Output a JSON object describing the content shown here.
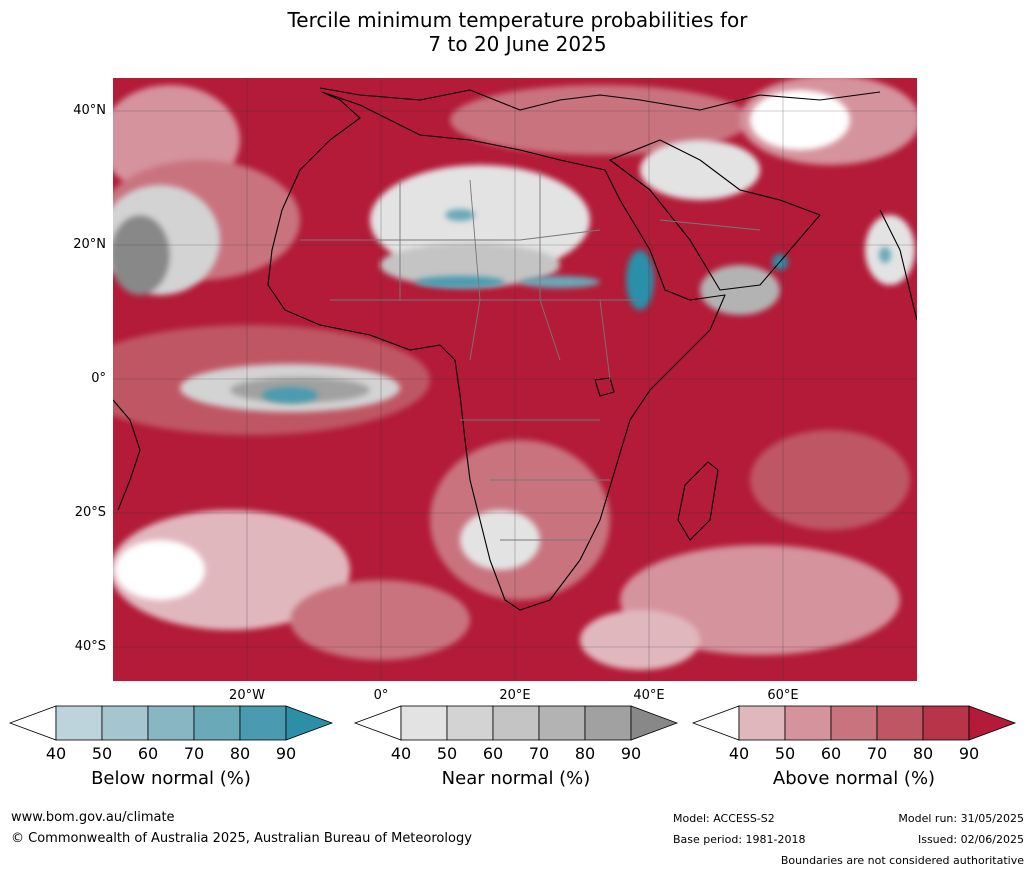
{
  "title": {
    "line1": "Tercile minimum temperature probabilities for",
    "line2": "7 to 20 June 2025"
  },
  "axes": {
    "lat_labels": [
      "40°N",
      "20°N",
      "0°",
      "20°S",
      "40°S"
    ],
    "lon_labels": [
      "20°W",
      "0°",
      "20°E",
      "40°E",
      "60°E"
    ]
  },
  "colorbars": [
    {
      "title": "Below normal (%)",
      "ticks": [
        "40",
        "50",
        "60",
        "70",
        "80",
        "90"
      ],
      "colors": [
        "#ffffff",
        "#bdd4dc",
        "#a5c6cf",
        "#89b6c3",
        "#6aa9b8",
        "#4a9bb0",
        "#2b8fa8"
      ]
    },
    {
      "title": "Near normal (%)",
      "ticks": [
        "40",
        "50",
        "60",
        "70",
        "80",
        "90"
      ],
      "colors": [
        "#ffffff",
        "#e3e3e3",
        "#d3d3d3",
        "#c4c4c4",
        "#b3b3b3",
        "#a1a1a1",
        "#888888"
      ]
    },
    {
      "title": "Above normal (%)",
      "ticks": [
        "40",
        "50",
        "60",
        "70",
        "80",
        "90"
      ],
      "colors": [
        "#ffffff",
        "#e1b7be",
        "#d5939d",
        "#c9737f",
        "#bf5664",
        "#b83449",
        "#b31b38"
      ]
    }
  ],
  "footer": {
    "website": "www.bom.gov.au/climate",
    "copyright": "© Commonwealth of Australia 2025, Australian Bureau of Meteorology",
    "model": "Model: ACCESS-S2",
    "base_period": "Base period: 1981-2018",
    "model_run": "Model run: 31/05/2025",
    "issued": "Issued: 02/06/2025",
    "disclaimer": "Boundaries are not considered authoritative"
  },
  "map_colors": {
    "ocean_dominant": "#b31b38",
    "land_outline": "#000000",
    "border": "#777777"
  }
}
